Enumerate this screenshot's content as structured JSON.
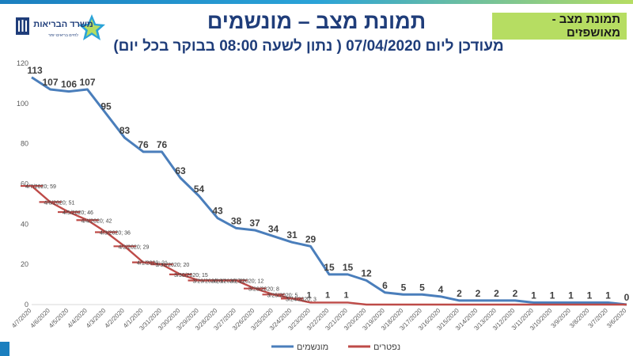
{
  "header": {
    "title": "תמונת מצב – מונשמים",
    "subtitle": "מעודכן ליום 07/04/2020 ( נתון לשעה 08:00 בבוקר בכל יום)",
    "tag": "תמונת מצב - מאושפזים",
    "ministry_logo_text": "משרד הבריאות",
    "ministry_logo_tagline": "לחיים בריאים יותר"
  },
  "colors": {
    "ventilated": "#4a7ebb",
    "deceased": "#be4b48",
    "title": "#1f3d7a",
    "tag_bg": "#b6dd62",
    "accent": "#1b7fbf"
  },
  "icons": [
    "state-emblem-icon",
    "ministry-of-health-logo-icon"
  ],
  "chart_data": {
    "type": "line",
    "categories": [
      "4/7/2020",
      "4/6/2020",
      "4/5/2020",
      "4/4/2020",
      "4/3/2020",
      "4/2/2020",
      "4/1/2020",
      "3/31/2020",
      "3/30/2020",
      "3/29/2020",
      "3/28/2020",
      "3/27/2020",
      "3/26/2020",
      "3/25/2020",
      "3/24/2020",
      "3/23/2020",
      "3/22/2020",
      "3/21/2020",
      "3/20/2020",
      "3/19/2020",
      "3/18/2020",
      "3/17/2020",
      "3/16/2020",
      "3/15/2020",
      "3/14/2020",
      "3/13/2020",
      "3/12/2020",
      "3/11/2020",
      "3/10/2020",
      "3/9/2020",
      "3/8/2020",
      "3/7/2020",
      "3/6/2020"
    ],
    "series": [
      {
        "name": "מונשמים",
        "values": [
          113,
          107,
          106,
          107,
          95,
          83,
          76,
          76,
          63,
          54,
          43,
          38,
          37,
          34,
          31,
          29,
          15,
          15,
          12,
          6,
          5,
          5,
          4,
          2,
          2,
          2,
          2,
          1,
          1,
          1,
          1,
          1,
          0
        ],
        "point_labels": [
          "113",
          "107",
          "106",
          "107",
          "95",
          "83",
          "76",
          "76",
          "63",
          "54",
          "43",
          "38",
          "37",
          "34",
          "31",
          "29",
          "15",
          "15",
          "12",
          "6",
          "5",
          "5",
          "4",
          "2",
          "2",
          "2",
          "2",
          "1",
          "1",
          "1",
          "1",
          "1",
          "0"
        ]
      },
      {
        "name": "נפטרים",
        "values": [
          59,
          51,
          46,
          42,
          36,
          29,
          21,
          20,
          15,
          12,
          12,
          12,
          8,
          5,
          3,
          1,
          1,
          1,
          0,
          0,
          0,
          0,
          0,
          0,
          0,
          0,
          0,
          0,
          0,
          0,
          0,
          0,
          0
        ],
        "point_labels": [
          "4/7/2020; 59",
          "4/6/2020; 51",
          "4/5/2020; 46",
          "4/4/2020; 42",
          "4/3/2020; 36",
          "4/2/2020; 29",
          "4/1/2020; 21",
          "3/31/2020; 20",
          "3/30/2020; 15",
          "3/29/2020; 12",
          "3/28/2020; 12",
          "3/27/2020; 12",
          "3/26/2020; 8",
          "3/25/2020; 5",
          "3/24/2020; 3",
          "1",
          "1",
          "1",
          "0",
          "0",
          "0",
          "0",
          "0",
          "0",
          "0",
          "0",
          "0",
          "0",
          "0",
          "0",
          "0",
          "0",
          "0"
        ]
      }
    ],
    "yticks": [
      "0",
      "20",
      "40",
      "60",
      "80",
      "100",
      "120"
    ],
    "ylim": [
      0,
      120
    ],
    "grid": false,
    "legend_position": "bottom"
  }
}
